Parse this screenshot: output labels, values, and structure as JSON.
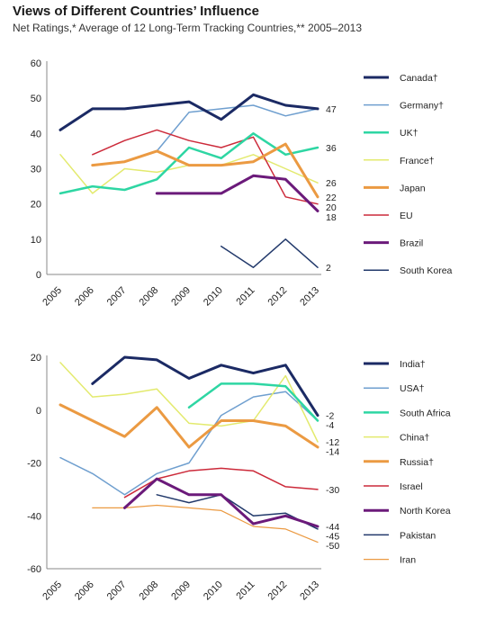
{
  "header": {
    "title": "Views of Different Countries’ Influence",
    "subtitle": "Net Ratings,* Average of 12 Long-Term Tracking Countries,** 2005–2013"
  },
  "chart_data": [
    {
      "type": "line",
      "x": [
        2005,
        2006,
        2007,
        2008,
        2009,
        2010,
        2011,
        2012,
        2013
      ],
      "ylim": [
        0,
        60
      ],
      "yticks": [
        0,
        10,
        20,
        30,
        40,
        50,
        60
      ],
      "grid": false,
      "legend": "right",
      "series": [
        {
          "name": "Canada†",
          "color": "#1b2a64",
          "width": 3,
          "values": [
            41,
            47,
            47,
            48,
            49,
            44,
            51,
            48,
            47
          ],
          "end_label": "47"
        },
        {
          "name": "Germany†",
          "color": "#6f9fcf",
          "width": 1.5,
          "values": [
            null,
            null,
            null,
            35,
            46,
            47,
            48,
            45,
            47
          ],
          "end_label": ""
        },
        {
          "name": "UK†",
          "color": "#2ed6a3",
          "width": 2.5,
          "values": [
            23,
            25,
            24,
            27,
            36,
            33,
            40,
            34,
            36
          ],
          "end_label": "36"
        },
        {
          "name": "France†",
          "color": "#e3ea6e",
          "width": 1.5,
          "values": [
            34,
            23,
            30,
            29,
            31,
            31,
            34,
            30,
            26
          ],
          "end_label": "26"
        },
        {
          "name": "Japan",
          "color": "#eb9a42",
          "width": 3,
          "values": [
            null,
            31,
            32,
            35,
            31,
            31,
            32,
            37,
            22
          ],
          "end_label": "22"
        },
        {
          "name": "EU",
          "color": "#cc2a3a",
          "width": 1.5,
          "values": [
            null,
            34,
            38,
            41,
            38,
            36,
            39,
            22,
            20
          ],
          "end_label": "20"
        },
        {
          "name": "Brazil",
          "color": "#6b1a7a",
          "width": 3,
          "values": [
            null,
            null,
            null,
            23,
            23,
            23,
            28,
            27,
            18
          ],
          "end_label": "18"
        },
        {
          "name": "South Korea",
          "color": "#22396b",
          "width": 1.5,
          "values": [
            null,
            null,
            null,
            null,
            null,
            8,
            2,
            10,
            2
          ],
          "end_label": "2"
        }
      ]
    },
    {
      "type": "line",
      "x": [
        2005,
        2006,
        2007,
        2008,
        2009,
        2010,
        2011,
        2012,
        2013
      ],
      "ylim": [
        -60,
        20
      ],
      "yticks": [
        -60,
        -40,
        -20,
        0,
        20
      ],
      "grid": false,
      "legend": "right",
      "series": [
        {
          "name": "India†",
          "color": "#1b2a64",
          "width": 3,
          "values": [
            null,
            10,
            20,
            19,
            12,
            17,
            14,
            17,
            -2
          ],
          "end_label": "-2"
        },
        {
          "name": "USA†",
          "color": "#6f9fcf",
          "width": 1.5,
          "values": [
            -18,
            -24,
            -32,
            -24,
            -20,
            -2,
            5,
            7,
            -4
          ],
          "end_label": ""
        },
        {
          "name": "South Africa",
          "color": "#2ed6a3",
          "width": 2.5,
          "values": [
            null,
            null,
            null,
            null,
            1,
            10,
            10,
            9,
            -4
          ],
          "end_label": "-4"
        },
        {
          "name": "China†",
          "color": "#e3ea6e",
          "width": 1.5,
          "values": [
            18,
            5,
            6,
            8,
            -5,
            -6,
            -4,
            13,
            -12
          ],
          "end_label": "-12"
        },
        {
          "name": "Russia†",
          "color": "#eb9a42",
          "width": 3,
          "values": [
            2,
            -4,
            -10,
            1,
            -14,
            -4,
            -4,
            -6,
            -14
          ],
          "end_label": "-14"
        },
        {
          "name": "Israel",
          "color": "#cc2a3a",
          "width": 1.5,
          "values": [
            null,
            null,
            -33,
            -26,
            -23,
            -22,
            -23,
            -29,
            -30
          ],
          "end_label": "-30"
        },
        {
          "name": "North Korea",
          "color": "#6b1a7a",
          "width": 3,
          "values": [
            null,
            null,
            -37,
            -26,
            -32,
            -32,
            -43,
            -40,
            -44
          ],
          "end_label": "-44"
        },
        {
          "name": "Pakistan",
          "color": "#22396b",
          "width": 1.5,
          "values": [
            null,
            null,
            null,
            -32,
            -35,
            -32,
            -40,
            -39,
            -45
          ],
          "end_label": "-45"
        },
        {
          "name": "Iran",
          "color": "#eb9a42",
          "width": 1.2,
          "values": [
            null,
            -37,
            -37,
            -36,
            -37,
            -38,
            -44,
            -45,
            -50
          ],
          "end_label": "-50"
        }
      ]
    }
  ]
}
